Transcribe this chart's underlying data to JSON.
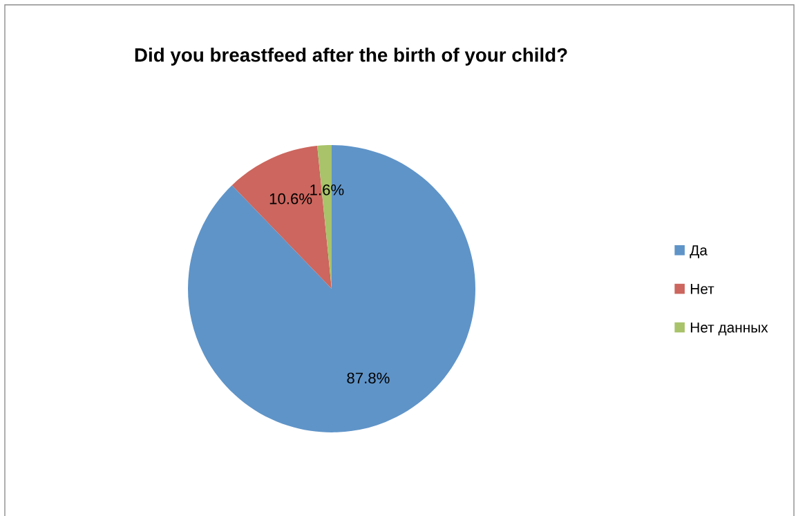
{
  "chart_data": {
    "type": "pie",
    "title": "Did you breastfeed after the birth of your child?",
    "categories": [
      "Да",
      "Нет",
      "Нет данных"
    ],
    "values": [
      87.8,
      10.6,
      1.6
    ],
    "colors": [
      "#5f94c8",
      "#cc665e",
      "#a8c36a"
    ],
    "value_labels": [
      "87.8%",
      "10.6%",
      "1.6%"
    ],
    "legend": "right"
  }
}
